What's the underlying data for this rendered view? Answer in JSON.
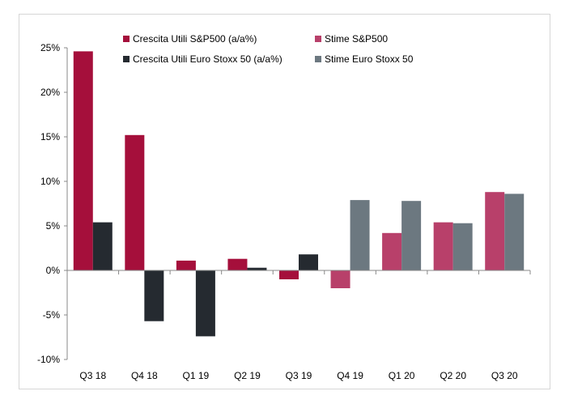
{
  "chart_data": {
    "type": "bar",
    "title": "",
    "xlabel": "",
    "ylabel": "",
    "categories": [
      "Q3 18",
      "Q4 18",
      "Q1 19",
      "Q2 19",
      "Q3 19",
      "Q4 19",
      "Q1 20",
      "Q2 20",
      "Q3 20"
    ],
    "ylim": [
      -10,
      25
    ],
    "yticks": [
      25,
      20,
      15,
      10,
      5,
      0,
      -5,
      -10
    ],
    "ytick_labels": [
      "25%",
      "20%",
      "15%",
      "10%",
      "5%",
      "0%",
      "-5%",
      "-10%"
    ],
    "grid": false,
    "legend_position": "top",
    "series": [
      {
        "name": "Crescita Utili S&P500 (a/a%)",
        "color": "#a50f3b",
        "values": [
          24.6,
          15.2,
          1.1,
          1.3,
          -1.0,
          null,
          null,
          null,
          null
        ]
      },
      {
        "name": "Crescita Utili Euro Stoxx 50 (a/a%)",
        "color": "#252a30",
        "values": [
          5.4,
          -5.7,
          -7.4,
          0.3,
          1.8,
          null,
          null,
          null,
          null
        ]
      },
      {
        "name": "Stime S&P500",
        "color": "#b8406a",
        "values": [
          null,
          null,
          null,
          null,
          null,
          -2.0,
          4.2,
          5.4,
          8.8
        ]
      },
      {
        "name": "Stime Euro Stoxx 50",
        "color": "#6c7880",
        "values": [
          null,
          null,
          null,
          null,
          null,
          7.9,
          7.8,
          5.3,
          8.6
        ]
      }
    ]
  }
}
